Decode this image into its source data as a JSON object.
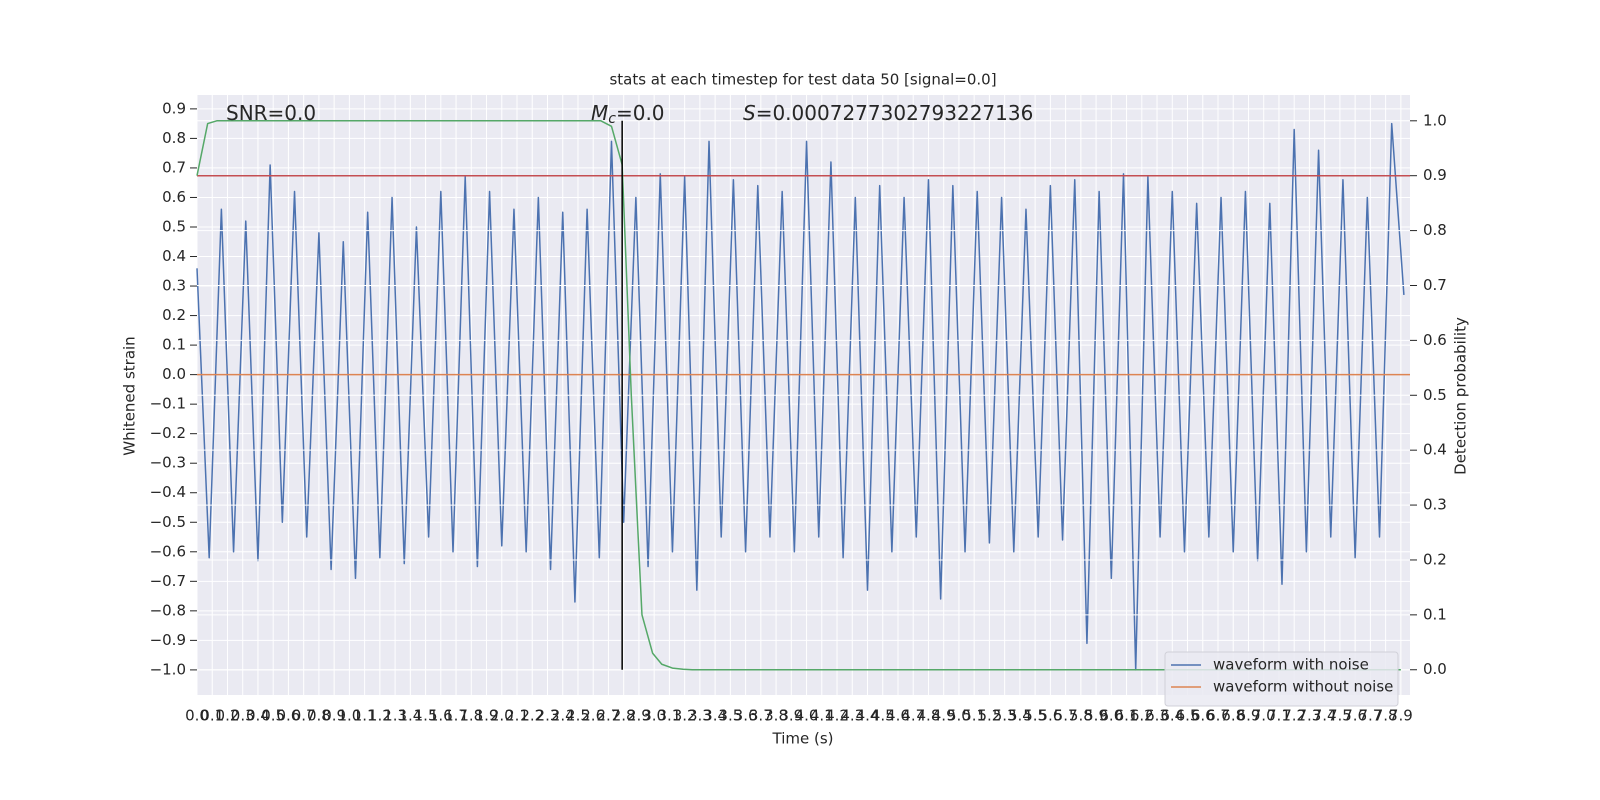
{
  "chart_data": {
    "type": "line",
    "title": "stats at each timestep for test data 50 [signal=0.0]",
    "xlabel": "Time (s)",
    "ylabel": "Whitened strain",
    "y2label": "Detection probability",
    "annotations": [
      {
        "text": "SNR=0.0"
      },
      {
        "symbol": "M",
        "subscript": "c",
        "text": "=0.0"
      },
      {
        "symbol": "S",
        "text": "=0.0007277302793227136"
      }
    ],
    "xlim": [
      0,
      7.96
    ],
    "ylim": [
      -1.085,
      0.947
    ],
    "y2lim": [
      -0.046,
      1.047
    ],
    "grid": true,
    "legend": "lower right",
    "background": "#eaeaf2",
    "xticks": [
      {
        "value": 0,
        "label": "0.0"
      },
      0.1,
      0.2,
      0.3,
      0.4,
      0.5,
      0.6,
      0.7,
      0.8,
      0.9,
      {
        "value": 1,
        "label": "1.0"
      },
      1.1,
      1.2,
      1.3,
      1.4,
      1.5,
      1.6,
      1.7,
      1.8,
      1.9,
      {
        "value": 2,
        "label": "2.0"
      },
      2.1,
      2.2,
      2.3,
      2.4,
      2.5,
      2.6,
      2.7,
      2.8,
      2.9,
      {
        "value": 3,
        "label": "3.0"
      },
      3.1,
      3.2,
      3.3,
      3.4,
      3.5,
      3.6,
      3.7,
      3.8,
      3.9,
      {
        "value": 4,
        "label": "4.0"
      },
      4.1,
      4.2,
      4.3,
      4.4,
      4.5,
      4.6,
      4.7,
      4.8,
      4.9,
      {
        "value": 5,
        "label": "5.0"
      },
      5.1,
      5.2,
      5.3,
      5.4,
      5.5,
      5.6,
      5.7,
      5.8,
      5.9,
      {
        "value": 6,
        "label": "6.0"
      },
      6.1,
      6.2,
      6.3,
      6.4,
      6.5,
      6.6,
      6.7,
      6.8,
      6.9,
      {
        "value": 7,
        "label": "7.0"
      },
      7.1,
      7.2,
      7.3,
      7.4,
      7.5,
      7.6,
      7.7,
      7.8,
      7.9
    ],
    "yticks": [
      0.9,
      0.8,
      0.7,
      0.6,
      0.5,
      0.4,
      0.3,
      0.2,
      0.1,
      {
        "value": 0,
        "label": "0.0"
      },
      {
        "value": -0.1,
        "label": "−0.1"
      },
      {
        "value": -0.2,
        "label": "−0.2"
      },
      {
        "value": -0.3,
        "label": "−0.3"
      },
      {
        "value": -0.4,
        "label": "−0.4"
      },
      {
        "value": -0.5,
        "label": "−0.5"
      },
      {
        "value": -0.6,
        "label": "−0.6"
      },
      {
        "value": -0.7,
        "label": "−0.7"
      },
      {
        "value": -0.8,
        "label": "−0.8"
      },
      {
        "value": -0.9,
        "label": "−0.9"
      },
      {
        "value": -1,
        "label": "−1.0"
      }
    ],
    "y2ticks": [
      {
        "value": 1,
        "label": "1.0"
      },
      0.9,
      0.8,
      0.7,
      0.6,
      0.5,
      0.4,
      0.3,
      0.2,
      0.1,
      {
        "value": 0,
        "label": "0.0"
      }
    ],
    "series": [
      {
        "name": "waveform with noise",
        "color": "#4c72b0",
        "x": [
          0,
          0.08,
          0.16,
          0.24,
          0.32,
          0.4,
          0.48,
          0.56,
          0.64,
          0.72,
          0.8,
          0.88,
          0.96,
          1.04,
          1.12,
          1.2,
          1.28,
          1.36,
          1.44,
          1.52,
          1.6,
          1.68,
          1.76,
          1.84,
          1.92,
          2,
          2.08,
          2.16,
          2.24,
          2.32,
          2.4,
          2.48,
          2.56,
          2.64,
          2.72,
          2.8,
          2.88,
          2.96,
          3.04,
          3.12,
          3.2,
          3.28,
          3.36,
          3.44,
          3.52,
          3.6,
          3.68,
          3.76,
          3.84,
          3.92,
          4,
          4.08,
          4.16,
          4.24,
          4.32,
          4.4,
          4.48,
          4.56,
          4.64,
          4.72,
          4.8,
          4.88,
          4.96,
          5.04,
          5.12,
          5.2,
          5.28,
          5.36,
          5.44,
          5.52,
          5.6,
          5.68,
          5.76,
          5.84,
          5.92,
          6,
          6.08,
          6.16,
          6.24,
          6.32,
          6.4,
          6.48,
          6.56,
          6.64,
          6.72,
          6.8,
          6.88,
          6.96,
          7.04,
          7.12,
          7.2,
          7.28,
          7.36,
          7.44,
          7.52,
          7.6,
          7.68,
          7.76,
          7.84,
          7.92
        ],
        "values": [
          0.36,
          -0.62,
          0.56,
          -0.6,
          0.52,
          -0.63,
          0.71,
          -0.5,
          0.62,
          -0.55,
          0.48,
          -0.66,
          0.45,
          -0.69,
          0.55,
          -0.62,
          0.6,
          -0.64,
          0.5,
          -0.55,
          0.62,
          -0.6,
          0.67,
          -0.65,
          0.62,
          -0.58,
          0.56,
          -0.6,
          0.6,
          -0.66,
          0.55,
          -0.77,
          0.56,
          -0.62,
          0.79,
          -0.5,
          0.6,
          -0.65,
          0.68,
          -0.6,
          0.67,
          -0.73,
          0.79,
          -0.55,
          0.66,
          -0.6,
          0.64,
          -0.55,
          0.62,
          -0.6,
          0.79,
          -0.55,
          0.72,
          -0.62,
          0.6,
          -0.73,
          0.64,
          -0.6,
          0.6,
          -0.55,
          0.66,
          -0.76,
          0.64,
          -0.6,
          0.62,
          -0.57,
          0.6,
          -0.6,
          0.56,
          -0.55,
          0.64,
          -0.56,
          0.66,
          -0.91,
          0.62,
          -0.69,
          0.68,
          -1.0,
          0.67,
          -0.55,
          0.62,
          -0.6,
          0.58,
          -0.55,
          0.6,
          -0.6,
          0.62,
          -0.63,
          0.58,
          -0.71,
          0.83,
          -0.6,
          0.76,
          -0.55,
          0.66,
          -0.62,
          0.6,
          -0.55,
          0.85,
          0.27
        ]
      },
      {
        "name": "waveform without noise",
        "color": "#dd8452",
        "x": [
          0,
          7.96
        ],
        "values": [
          0,
          0
        ]
      },
      {
        "color": "#55a868",
        "axis": "y2",
        "x": [
          0,
          0.07,
          0.13,
          2.65,
          2.72,
          2.79,
          2.85,
          2.92,
          2.99,
          3.05,
          3.12,
          3.19,
          3.25,
          7.9
        ],
        "values": [
          0.9,
          0.995,
          1.0,
          1.0,
          0.99,
          0.92,
          0.5,
          0.1,
          0.03,
          0.01,
          0.003,
          0.001,
          0,
          0
        ]
      }
    ],
    "threshold": {
      "value": 0.9,
      "axis": "y2",
      "color": "#c44e52"
    },
    "vline": {
      "x": 2.79,
      "ymin": 0,
      "ymax": 1.0,
      "axis": "y2",
      "color": "#000000"
    }
  }
}
